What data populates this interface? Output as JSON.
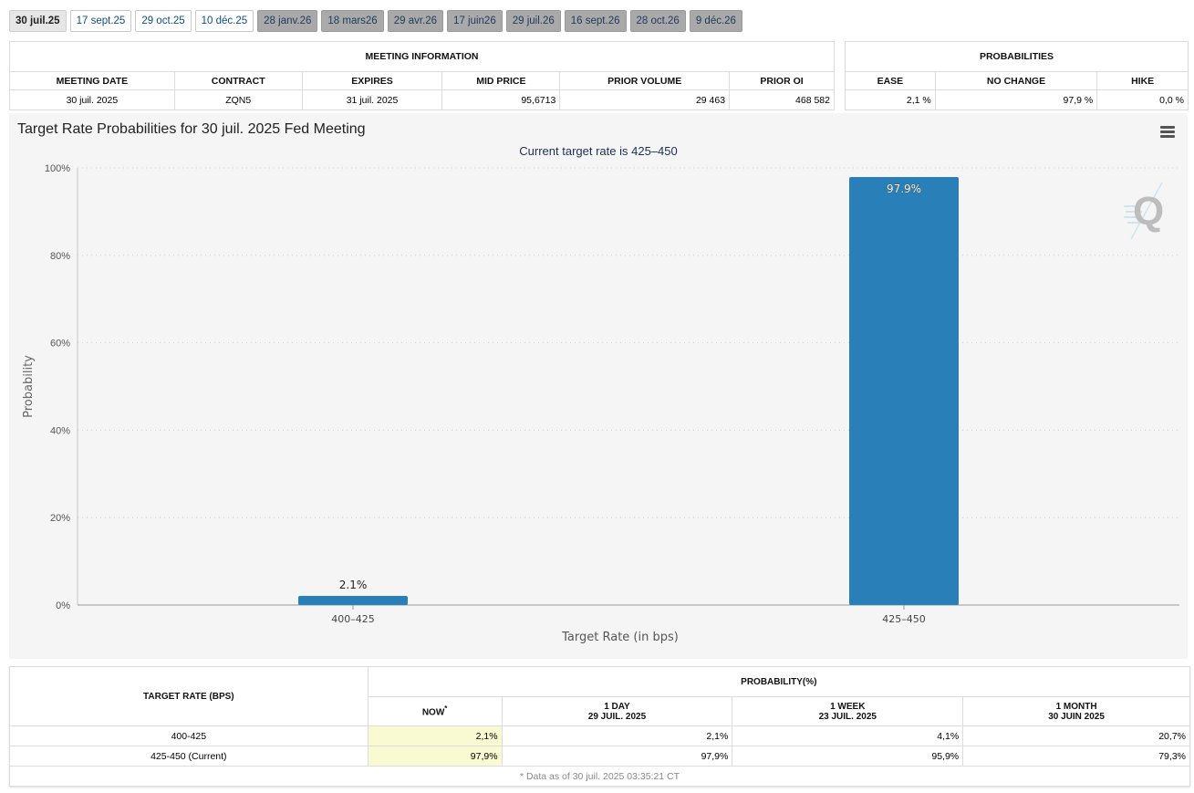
{
  "tabs": [
    {
      "label": "30 juil.25",
      "state": "active"
    },
    {
      "label": "17 sept.25",
      "state": "normal"
    },
    {
      "label": "29 oct.25",
      "state": "normal"
    },
    {
      "label": "10 déc.25",
      "state": "normal"
    },
    {
      "label": "28 janv.26",
      "state": "future"
    },
    {
      "label": "18 mars26",
      "state": "future"
    },
    {
      "label": "29 avr.26",
      "state": "future"
    },
    {
      "label": "17 juin26",
      "state": "future"
    },
    {
      "label": "29 juil.26",
      "state": "future"
    },
    {
      "label": "16 sept.26",
      "state": "future"
    },
    {
      "label": "28 oct.26",
      "state": "future"
    },
    {
      "label": "9 déc.26",
      "state": "future"
    }
  ],
  "meeting_info": {
    "title": "MEETING INFORMATION",
    "headers": [
      "MEETING DATE",
      "CONTRACT",
      "EXPIRES",
      "MID PRICE",
      "PRIOR VOLUME",
      "PRIOR OI"
    ],
    "values": [
      "30 juil. 2025",
      "ZQN5",
      "31 juil. 2025",
      "95,6713",
      "29 463",
      "468 582"
    ]
  },
  "probabilities": {
    "title": "PROBABILITIES",
    "headers": [
      "EASE",
      "NO CHANGE",
      "HIKE"
    ],
    "values": [
      "2,1 %",
      "97,9 %",
      "0,0 %"
    ]
  },
  "chart_data": {
    "type": "bar",
    "title": "Target Rate Probabilities for 30 juil. 2025 Fed Meeting",
    "subtitle": "Current target rate is 425–450",
    "xlabel": "Target Rate (in bps)",
    "ylabel": "Probability",
    "categories": [
      "400–425",
      "425–450"
    ],
    "values": [
      2.1,
      97.9
    ],
    "data_labels": [
      "2.1%",
      "97.9%"
    ],
    "ylim": [
      0,
      100
    ],
    "yticks": [
      0,
      20,
      40,
      60,
      80,
      100
    ],
    "ytick_labels": [
      "0%",
      "20%",
      "40%",
      "60%",
      "80%",
      "100%"
    ],
    "grid": true,
    "bar_color": "#2980b9",
    "background": "#f5f5f5"
  },
  "prob_table": {
    "col_target": "TARGET RATE (BPS)",
    "col_group": "PROBABILITY(%)",
    "cols": [
      {
        "line1": "NOW",
        "line2": "",
        "sup": "*"
      },
      {
        "line1": "1 DAY",
        "line2": "29 JUIL. 2025",
        "sup": ""
      },
      {
        "line1": "1 WEEK",
        "line2": "23 JUIL. 2025",
        "sup": ""
      },
      {
        "line1": "1 MONTH",
        "line2": "30 JUIN 2025",
        "sup": ""
      }
    ],
    "rows": [
      {
        "label": "400-425",
        "values": [
          "2,1%",
          "2,1%",
          "4,1%",
          "20,7%"
        ]
      },
      {
        "label": "425-450 (Current)",
        "values": [
          "97,9%",
          "97,9%",
          "95,9%",
          "79,3%"
        ]
      }
    ],
    "footnote": "* Data as of 30 juil. 2025 03:35:21 CT"
  }
}
